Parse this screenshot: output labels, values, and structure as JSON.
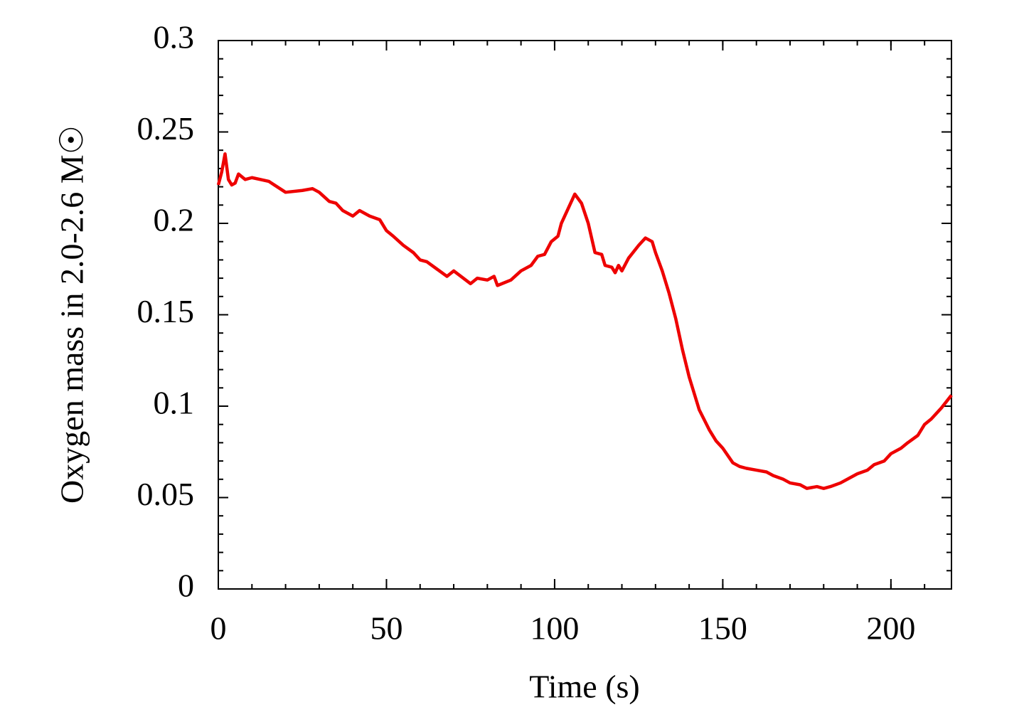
{
  "chart_data": {
    "type": "line",
    "xlabel": "Time (s)",
    "ylabel": "Oxygen mass in 2.0-2.6 M☉",
    "x": [
      0,
      1,
      2,
      3,
      4,
      5,
      6,
      8,
      10,
      15,
      20,
      25,
      28,
      30,
      33,
      35,
      37,
      40,
      42,
      45,
      48,
      50,
      52,
      55,
      58,
      60,
      62,
      65,
      68,
      70,
      75,
      77,
      80,
      82,
      83,
      87,
      90,
      93,
      95,
      97,
      99,
      101,
      102,
      105,
      106,
      108,
      110,
      112,
      114,
      115,
      117,
      118,
      119,
      120,
      122,
      125,
      127,
      129,
      130,
      132,
      134,
      136,
      138,
      140,
      143,
      146,
      148,
      150,
      153,
      155,
      157,
      160,
      163,
      165,
      168,
      170,
      173,
      175,
      178,
      180,
      182,
      185,
      188,
      190,
      193,
      195,
      198,
      200,
      203,
      205,
      208,
      210,
      212,
      215,
      218
    ],
    "series": [
      {
        "color": "#ee0000",
        "values": [
          0.221,
          0.228,
          0.238,
          0.224,
          0.221,
          0.222,
          0.227,
          0.224,
          0.225,
          0.223,
          0.217,
          0.218,
          0.219,
          0.217,
          0.212,
          0.211,
          0.207,
          0.204,
          0.207,
          0.204,
          0.202,
          0.196,
          0.193,
          0.188,
          0.184,
          0.18,
          0.179,
          0.175,
          0.171,
          0.174,
          0.167,
          0.17,
          0.169,
          0.171,
          0.166,
          0.169,
          0.174,
          0.177,
          0.182,
          0.183,
          0.19,
          0.193,
          0.2,
          0.212,
          0.216,
          0.211,
          0.2,
          0.184,
          0.183,
          0.177,
          0.176,
          0.173,
          0.177,
          0.174,
          0.181,
          0.188,
          0.192,
          0.19,
          0.184,
          0.174,
          0.162,
          0.148,
          0.131,
          0.116,
          0.098,
          0.087,
          0.081,
          0.077,
          0.069,
          0.067,
          0.066,
          0.065,
          0.064,
          0.062,
          0.06,
          0.058,
          0.057,
          0.055,
          0.056,
          0.055,
          0.056,
          0.058,
          0.061,
          0.063,
          0.065,
          0.068,
          0.07,
          0.074,
          0.077,
          0.08,
          0.084,
          0.09,
          0.093,
          0.099,
          0.106
        ]
      }
    ],
    "xlim": [
      0,
      218
    ],
    "xticks": [
      0,
      50,
      100,
      150,
      200
    ],
    "xminor": 10,
    "ylim": [
      0,
      0.3
    ],
    "yticks": [
      0,
      0.05,
      0.1,
      0.15,
      0.2,
      0.25,
      0.3
    ],
    "yminor": 0.01
  }
}
